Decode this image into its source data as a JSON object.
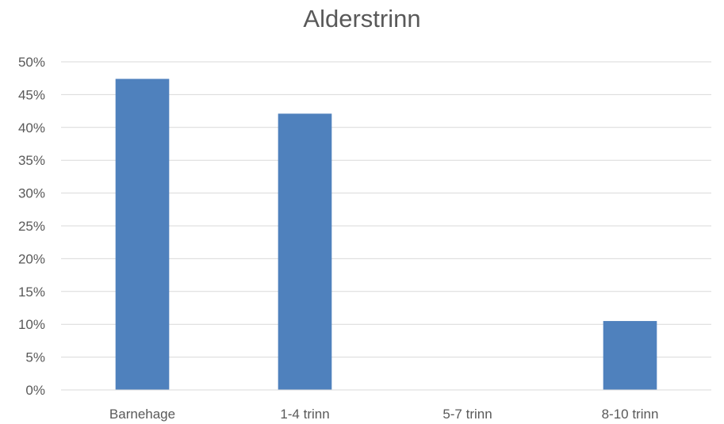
{
  "chart_data": {
    "type": "bar",
    "title": "Alderstrinn",
    "xlabel": "",
    "ylabel": "",
    "categories": [
      "Barnehage",
      "1-4 trinn",
      "5-7 trinn",
      "8-10 trinn"
    ],
    "values": [
      0.474,
      0.421,
      0.0,
      0.105
    ],
    "ylim": [
      0,
      0.5
    ],
    "yticks": [
      {
        "value": 0.0,
        "label": "0%"
      },
      {
        "value": 0.05,
        "label": "5%"
      },
      {
        "value": 0.1,
        "label": "10%"
      },
      {
        "value": 0.15,
        "label": "15%"
      },
      {
        "value": 0.2,
        "label": "20%"
      },
      {
        "value": 0.25,
        "label": "25%"
      },
      {
        "value": 0.3,
        "label": "30%"
      },
      {
        "value": 0.35,
        "label": "35%"
      },
      {
        "value": 0.4,
        "label": "40%"
      },
      {
        "value": 0.45,
        "label": "45%"
      },
      {
        "value": 0.5,
        "label": "50%"
      }
    ],
    "grid": true,
    "legend": "none",
    "colors": {
      "bar": "#4f81bd",
      "grid": "#d9d9d9",
      "axis": "#d9d9d9",
      "text": "#595959"
    }
  }
}
